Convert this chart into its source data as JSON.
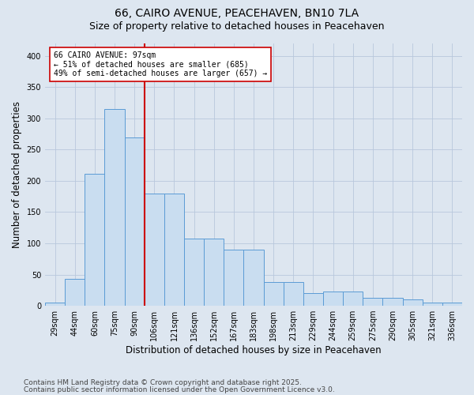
{
  "title_line1": "66, CAIRO AVENUE, PEACEHAVEN, BN10 7LA",
  "title_line2": "Size of property relative to detached houses in Peacehaven",
  "xlabel": "Distribution of detached houses by size in Peacehaven",
  "ylabel": "Number of detached properties",
  "categories": [
    "29sqm",
    "44sqm",
    "60sqm",
    "75sqm",
    "90sqm",
    "106sqm",
    "121sqm",
    "136sqm",
    "152sqm",
    "167sqm",
    "183sqm",
    "198sqm",
    "213sqm",
    "229sqm",
    "244sqm",
    "259sqm",
    "275sqm",
    "290sqm",
    "305sqm",
    "321sqm",
    "336sqm"
  ],
  "values": [
    5,
    43,
    211,
    315,
    270,
    180,
    180,
    108,
    108,
    90,
    90,
    38,
    38,
    20,
    23,
    23,
    13,
    13,
    10,
    5,
    5
  ],
  "bar_color": "#c9ddf0",
  "bar_edge_color": "#5b9bd5",
  "vline_x": 4.5,
  "vline_color": "#cc0000",
  "annotation_text": "66 CAIRO AVENUE: 97sqm\n← 51% of detached houses are smaller (685)\n49% of semi-detached houses are larger (657) →",
  "annotation_box_color": "#ffffff",
  "annotation_box_edge": "#cc0000",
  "footnote1": "Contains HM Land Registry data © Crown copyright and database right 2025.",
  "footnote2": "Contains public sector information licensed under the Open Government Licence v3.0.",
  "background_color": "#dde6f0",
  "grid_color": "#b8c8dc",
  "ylim": [
    0,
    420
  ],
  "title_fontsize": 10,
  "subtitle_fontsize": 9,
  "axis_label_fontsize": 8.5,
  "tick_fontsize": 7,
  "annotation_fontsize": 7,
  "footnote_fontsize": 6.5
}
